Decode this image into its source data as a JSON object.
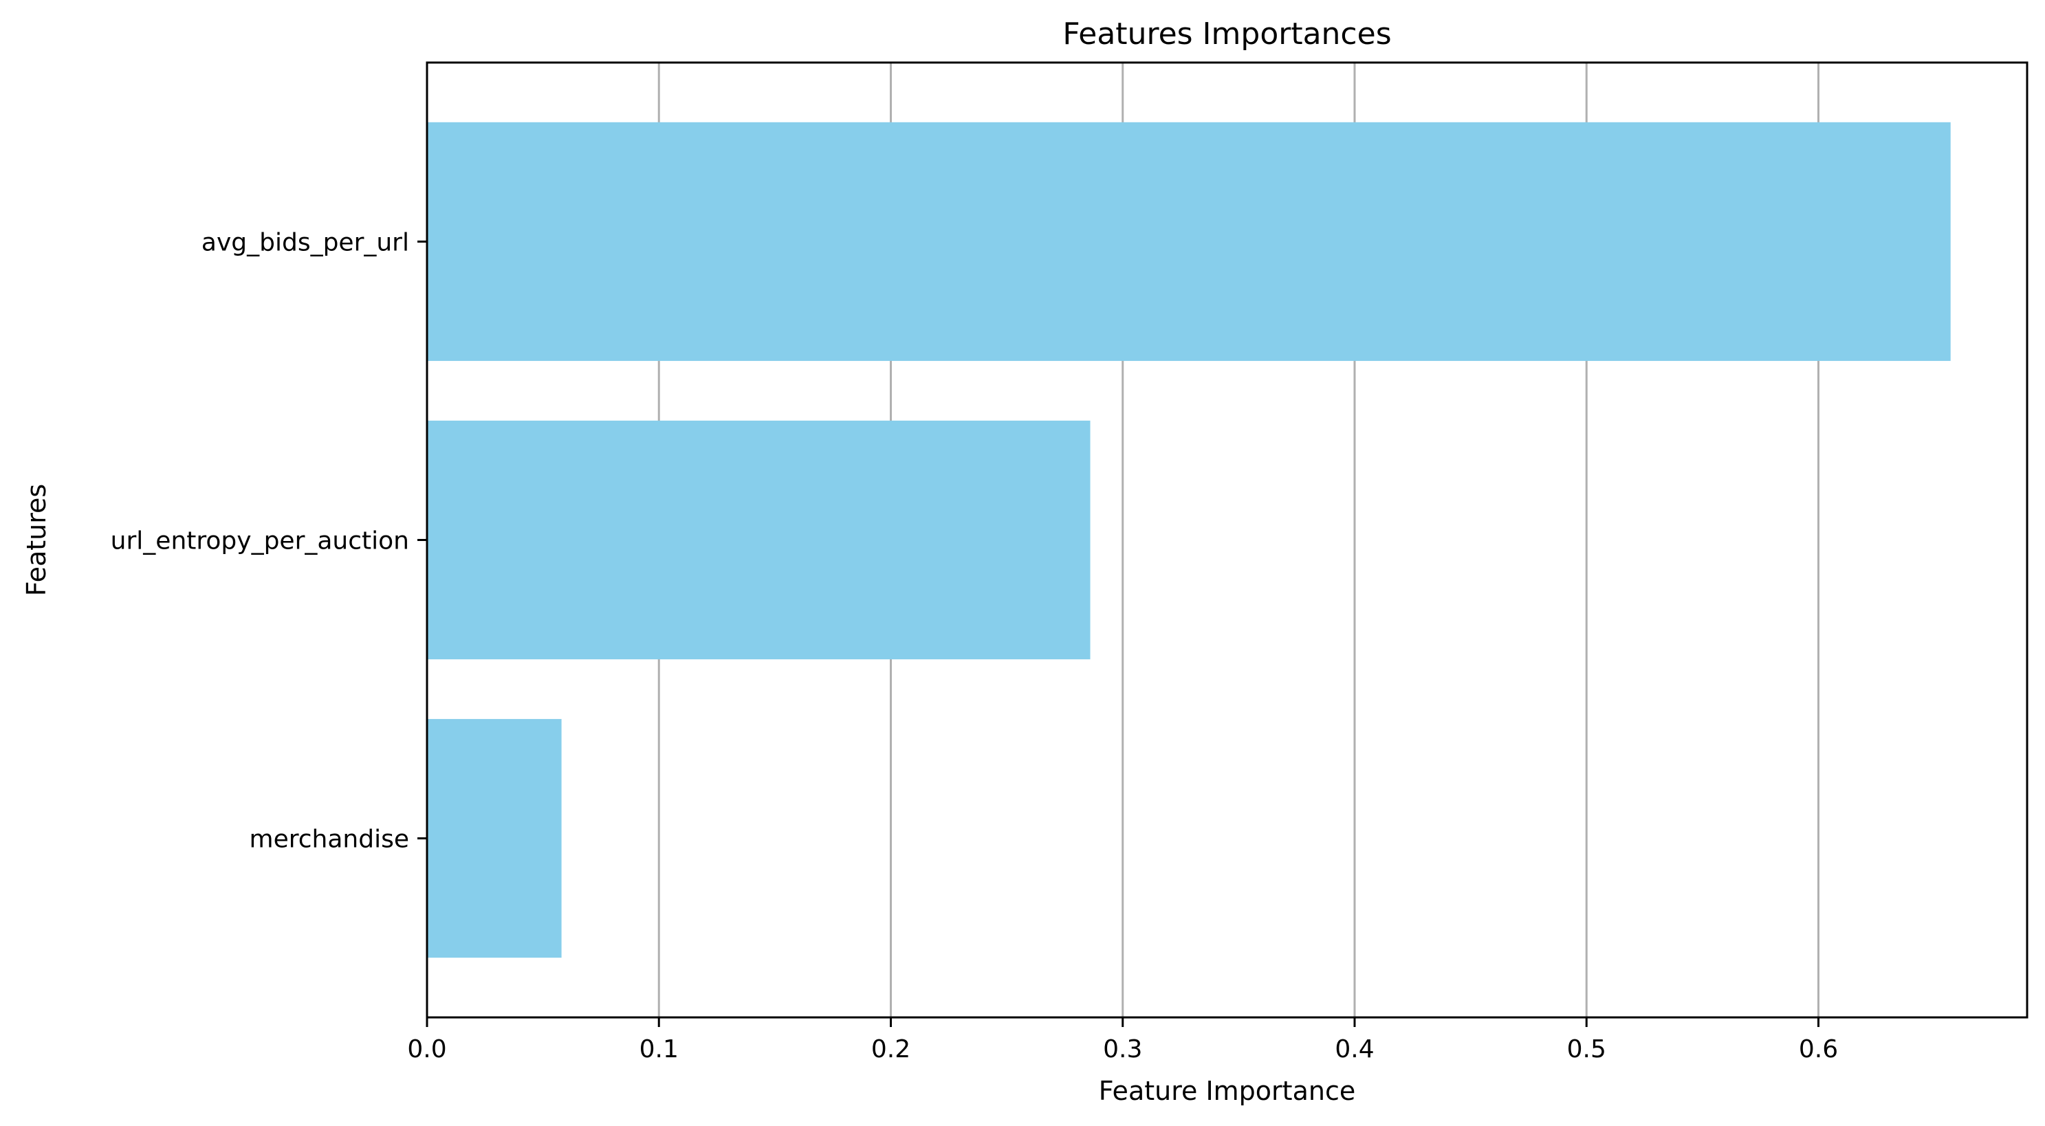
{
  "chart_data": {
    "type": "bar",
    "orientation": "horizontal",
    "title": "Features Importances",
    "xlabel": "Feature Importance",
    "ylabel": "Features",
    "categories": [
      "avg_bids_per_url",
      "url_entropy_per_auction",
      "merchandise"
    ],
    "values": [
      0.657,
      0.286,
      0.058
    ],
    "xlim": [
      0,
      0.69
    ],
    "xticks": [
      0.0,
      0.1,
      0.2,
      0.3,
      0.4,
      0.5,
      0.6
    ],
    "xtick_labels": [
      "0.0",
      "0.1",
      "0.2",
      "0.3",
      "0.4",
      "0.5",
      "0.6"
    ],
    "grid": "x-axis vertical lines",
    "bar_color": "#87ceeb",
    "grid_color": "#b0b0b0"
  }
}
